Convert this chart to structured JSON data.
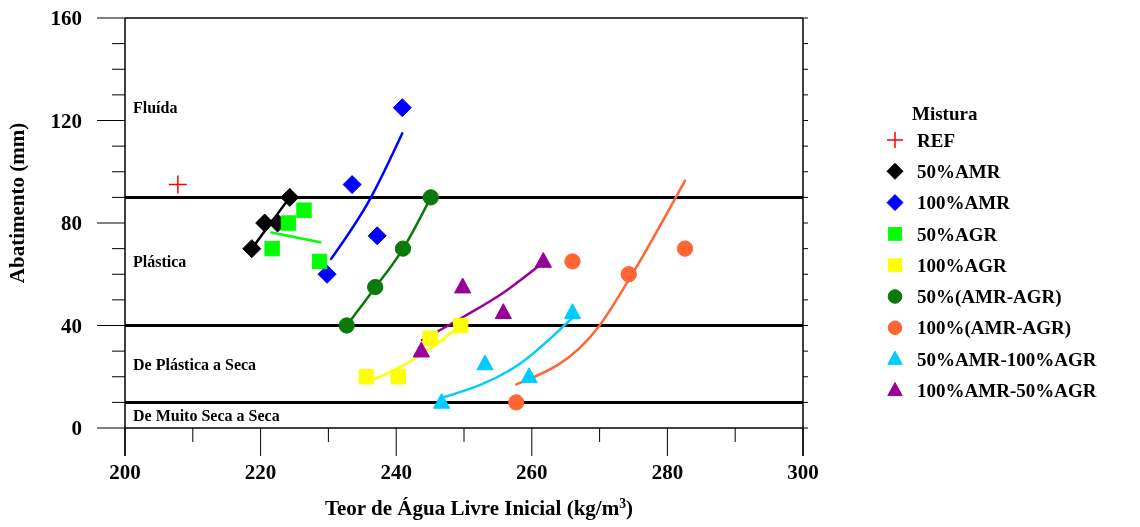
{
  "chart_data": {
    "type": "scatter",
    "xlabel": "Teor de Água Livre Inicial (kg/m$^{3}$)",
    "ylabel": "Abatimento (mm)",
    "legend_title": "Mistura",
    "legend": "right",
    "grid": false,
    "xlim": [
      200,
      300
    ],
    "ylim": [
      0,
      160
    ],
    "xticks": [
      200,
      {
        "value": 210,
        "label": null
      },
      220,
      {
        "value": 230,
        "label": null
      },
      240,
      {
        "value": 250,
        "label": null
      },
      260,
      {
        "value": 270,
        "label": null
      },
      280,
      {
        "value": 290,
        "label": null
      },
      300
    ],
    "yticks": [
      0,
      {
        "value": 10,
        "label": null
      },
      {
        "value": 20,
        "label": null
      },
      {
        "value": 30,
        "label": null
      },
      40,
      {
        "value": 50,
        "label": null
      },
      {
        "value": 60,
        "label": null
      },
      {
        "value": 70,
        "label": null
      },
      80,
      {
        "value": 90,
        "label": null
      },
      {
        "value": 100,
        "label": null
      },
      {
        "value": 110,
        "label": null
      },
      120,
      {
        "value": 130,
        "label": null
      },
      {
        "value": 140,
        "label": null
      },
      {
        "value": 150,
        "label": null
      },
      160
    ],
    "ref_lines": [
      {
        "axis": "y",
        "value": 90,
        "color": "#000000"
      },
      {
        "axis": "y",
        "value": 40,
        "color": "#000000"
      },
      {
        "axis": "y",
        "value": 10,
        "color": "#000000"
      }
    ],
    "annotations": [
      "Fluída",
      "Plástica",
      "De Plástica a Seca",
      "De Muito Seca a Seca"
    ],
    "series": [
      {
        "type": "line",
        "color": "#000000",
        "x": [
          218.7,
          224.3
        ],
        "values": [
          70,
          90
        ]
      },
      {
        "type": "line",
        "color": "#0000ff",
        "x": [
          230.4,
          236.2,
          240.9
        ],
        "values": [
          66,
          89.6,
          115
        ]
      },
      {
        "type": "line",
        "color": "#00ff00",
        "x": [
          221.6,
          228.8
        ],
        "values": [
          76.3,
          72.5
        ]
      },
      {
        "type": "line",
        "color": "#0a7a0a",
        "x": [
          232.7,
          236.9,
          241,
          245.1
        ],
        "values": [
          40,
          54.8,
          69.9,
          90
        ]
      },
      {
        "type": "line",
        "color": "#ffff00",
        "x": [
          236.6,
          240.3,
          245,
          249.5
        ],
        "values": [
          19,
          23.4,
          31,
          40
        ]
      },
      {
        "type": "line",
        "color": "#990099",
        "x": [
          243.8,
          250,
          255.8,
          261.2
        ],
        "values": [
          34.3,
          43.5,
          52.8,
          63.6
        ]
      },
      {
        "type": "line",
        "color": "#00ccff",
        "x": [
          246.5,
          258.3,
          265.9
        ],
        "values": [
          11.6,
          25.2,
          42.8
        ]
      },
      {
        "type": "line",
        "color": "#ff6633",
        "x": [
          257.7,
          270,
          274.3,
          282.6
        ],
        "values": [
          17,
          40,
          57.8,
          96.5
        ]
      },
      {
        "name": "REF",
        "color": "#ff0000",
        "marker": "cross",
        "x": [
          207.8
        ],
        "values": [
          95
        ]
      },
      {
        "name": "50%AMR",
        "color": "#000000",
        "marker": "diamond",
        "x": [
          218.7,
          220.6,
          222.5,
          224.3
        ],
        "values": [
          70,
          80,
          80,
          90
        ]
      },
      {
        "name": "100%AMR",
        "color": "#0000ff",
        "marker": "diamond",
        "x": [
          229.8,
          233.5,
          237.2,
          240.9
        ],
        "values": [
          60,
          95,
          75,
          125
        ]
      },
      {
        "name": "50%AGR",
        "color": "#00ff00",
        "marker": "square",
        "x": [
          221.7,
          224.1,
          226.4,
          228.7
        ],
        "values": [
          70,
          80,
          85,
          65
        ]
      },
      {
        "name": "100%AGR",
        "color": "#ffff00",
        "marker": "square",
        "x": [
          235.6,
          240.3,
          245,
          249.5
        ],
        "values": [
          20,
          20,
          35,
          40
        ]
      },
      {
        "name": "50%(AMR-AGR)",
        "color": "#0a7a0a",
        "marker": "circle",
        "x": [
          232.7,
          236.9,
          241,
          245.1
        ],
        "values": [
          40,
          55,
          70,
          90
        ]
      },
      {
        "name": "100%(AMR-AGR)",
        "color": "#ff6633",
        "marker": "circle",
        "x": [
          257.7,
          266,
          274.3,
          282.6
        ],
        "values": [
          10,
          65,
          60,
          70
        ]
      },
      {
        "name": "50%AMR-100%AGR",
        "color": "#00ccff",
        "marker": "triangle",
        "x": [
          246.7,
          253.1,
          259.6,
          266
        ],
        "values": [
          10,
          25,
          20,
          45
        ]
      },
      {
        "name": "100%AMR-50%AGR",
        "color": "#990099",
        "marker": "triangle",
        "x": [
          243.7,
          249.8,
          255.8,
          261.7
        ],
        "values": [
          30,
          55,
          45,
          65
        ]
      }
    ]
  }
}
